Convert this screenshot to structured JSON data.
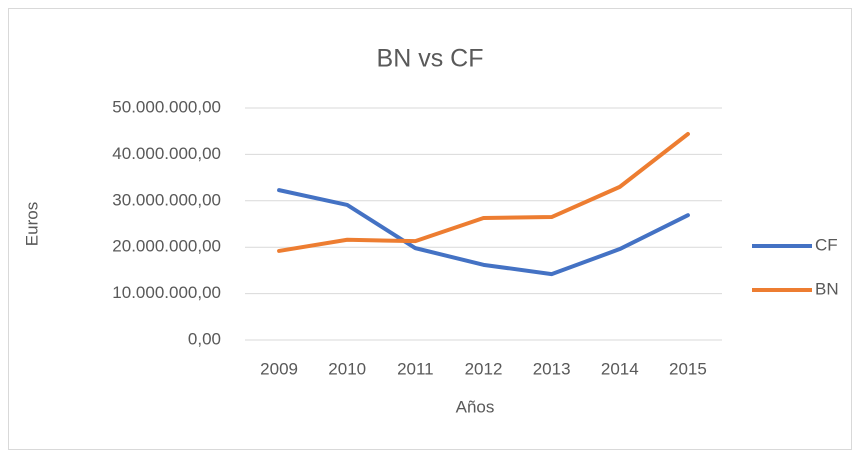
{
  "chart_data": {
    "type": "line",
    "title": "BN vs CF",
    "x_label": "Años",
    "y_label": "Euros",
    "categories": [
      "2009",
      "2010",
      "2011",
      "2012",
      "2013",
      "2014",
      "2015"
    ],
    "series": [
      {
        "name": "CF",
        "color": "#4472c4",
        "values": [
          32300000,
          29100000,
          19800000,
          16200000,
          14200000,
          19600000,
          26900000
        ]
      },
      {
        "name": "BN",
        "color": "#ed7d31",
        "values": [
          19200000,
          21600000,
          21300000,
          26300000,
          26500000,
          33000000,
          44400000
        ]
      }
    ],
    "ylim": [
      0,
      50000000
    ],
    "yticks": [
      {
        "value": 0,
        "label": "0,00"
      },
      {
        "value": 10000000,
        "label": "10.000.000,00"
      },
      {
        "value": 20000000,
        "label": "20.000.000,00"
      },
      {
        "value": 30000000,
        "label": "30.000.000,00"
      },
      {
        "value": 40000000,
        "label": "40.000.000,00"
      },
      {
        "value": 50000000,
        "label": "50.000.000,00"
      }
    ],
    "grid": true,
    "legend": "right"
  }
}
